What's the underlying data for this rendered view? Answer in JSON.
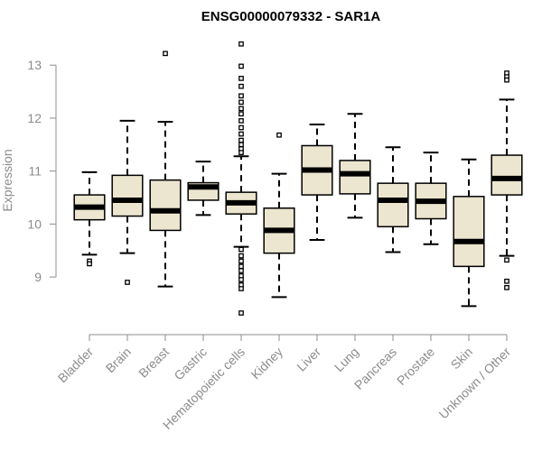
{
  "chart_data": {
    "type": "boxplot",
    "title": "ENSG00000079332 - SAR1A",
    "xlabel": "",
    "ylabel": "Expression",
    "ylim": [
      8.15,
      13.6
    ],
    "yticks": [
      9,
      10,
      11,
      12,
      13
    ],
    "box_color": "#ece5cf",
    "median_color": "#000000",
    "categories": [
      "Bladder",
      "Brain",
      "Breast",
      "Gastric",
      "Hematopoietic cells",
      "Kidney",
      "Liver",
      "Lung",
      "Pancreas",
      "Prostate",
      "Skin",
      "Unknown / Other"
    ],
    "boxes": [
      {
        "min": 9.42,
        "q1": 10.08,
        "median": 10.32,
        "q3": 10.55,
        "max": 10.98,
        "outliers": [
          9.3,
          9.25
        ]
      },
      {
        "min": 9.45,
        "q1": 10.15,
        "median": 10.45,
        "q3": 10.92,
        "max": 11.95,
        "outliers": [
          8.9
        ]
      },
      {
        "min": 8.82,
        "q1": 9.88,
        "median": 10.25,
        "q3": 10.83,
        "max": 11.93,
        "outliers": [
          13.22
        ]
      },
      {
        "min": 10.17,
        "q1": 10.45,
        "median": 10.7,
        "q3": 10.78,
        "max": 11.18,
        "outliers": []
      },
      {
        "min": 9.57,
        "q1": 10.19,
        "median": 10.4,
        "q3": 10.6,
        "max": 11.28,
        "outliers": [
          13.4,
          12.98,
          12.75,
          12.6,
          12.42,
          12.3,
          12.18,
          12.08,
          11.95,
          11.82,
          11.7,
          11.58,
          11.5,
          11.42,
          11.35,
          9.52,
          9.4,
          9.3,
          9.2,
          9.12,
          9.02,
          8.95,
          8.85,
          8.78,
          8.32
        ]
      },
      {
        "min": 8.62,
        "q1": 9.45,
        "median": 9.88,
        "q3": 10.3,
        "max": 10.95,
        "outliers": [
          11.68
        ]
      },
      {
        "min": 9.7,
        "q1": 10.55,
        "median": 11.02,
        "q3": 11.48,
        "max": 11.88,
        "outliers": []
      },
      {
        "min": 10.12,
        "q1": 10.57,
        "median": 10.95,
        "q3": 11.2,
        "max": 12.08,
        "outliers": []
      },
      {
        "min": 9.47,
        "q1": 9.95,
        "median": 10.45,
        "q3": 10.77,
        "max": 11.45,
        "outliers": []
      },
      {
        "min": 9.62,
        "q1": 10.1,
        "median": 10.43,
        "q3": 10.77,
        "max": 11.35,
        "outliers": []
      },
      {
        "min": 8.45,
        "q1": 9.2,
        "median": 9.67,
        "q3": 10.52,
        "max": 11.22,
        "outliers": []
      },
      {
        "min": 9.4,
        "q1": 10.55,
        "median": 10.86,
        "q3": 11.3,
        "max": 12.35,
        "outliers": [
          12.85,
          12.78,
          12.72,
          9.32,
          8.92,
          8.8
        ]
      }
    ]
  }
}
